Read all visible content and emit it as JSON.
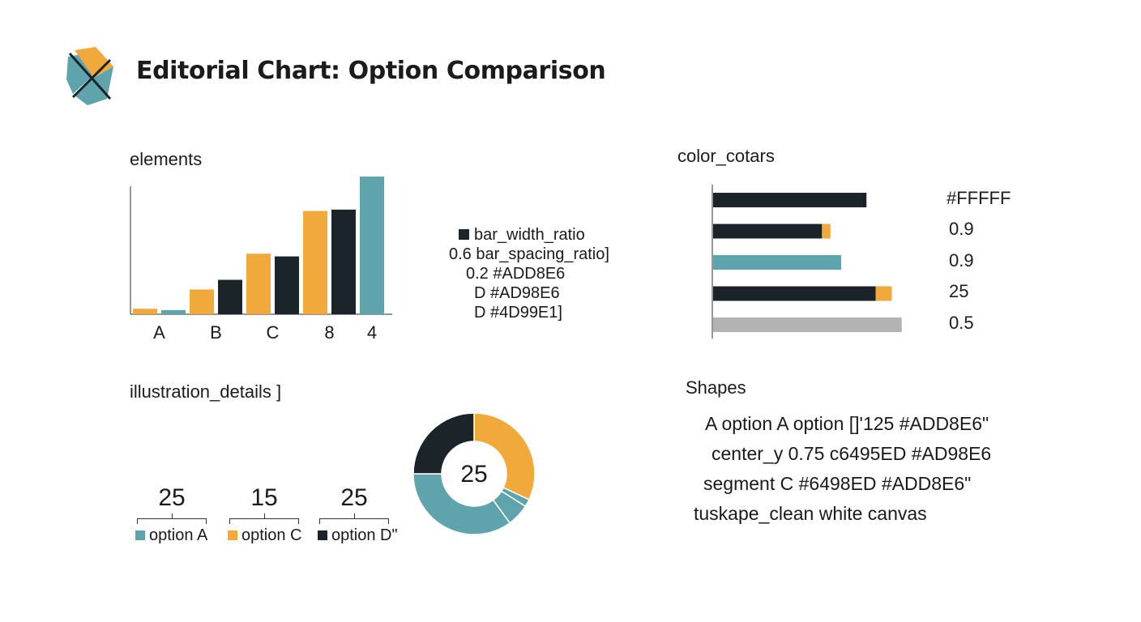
{
  "title": "Editorial Chart: Option Comparison",
  "colors": {
    "teal": "#5fa3ad",
    "orange": "#f2a93b",
    "dark": "#1b2428",
    "gray": "#b3b3b3"
  },
  "sections": {
    "elements": "elements",
    "color": "color_cotars",
    "illustration": "illustration_details ]",
    "shapes": "Shapes"
  },
  "legend_lines": [
    "bar_width_ratio",
    "0.6 bar_spacing_ratio]",
    "0.2 #ADD8E6",
    "D #AD98E6",
    "D #4D99E1]"
  ],
  "chart_data": [
    {
      "type": "bar",
      "title": "elements",
      "categories": [
        "A",
        "B",
        "C",
        "8",
        "4"
      ],
      "series": [
        {
          "color": "#f2a93b",
          "values": [
            4,
            18,
            44,
            75,
            null
          ]
        },
        {
          "color": "#5fa3ad",
          "values": [
            3,
            null,
            null,
            null,
            100
          ]
        },
        {
          "color": "#1b2428",
          "values": [
            null,
            25,
            42,
            76,
            null
          ]
        }
      ],
      "bars": [
        {
          "category": "A",
          "color": "orange",
          "value": 4
        },
        {
          "category": "A",
          "color": "teal",
          "value": 3
        },
        {
          "category": "B",
          "color": "orange",
          "value": 18
        },
        {
          "category": "B",
          "color": "dark",
          "value": 25
        },
        {
          "category": "C",
          "color": "orange",
          "value": 44
        },
        {
          "category": "C",
          "color": "dark",
          "value": 42
        },
        {
          "category": "8",
          "color": "orange",
          "value": 75
        },
        {
          "category": "8",
          "color": "dark",
          "value": 76
        },
        {
          "category": "4",
          "color": "teal",
          "value": 100
        }
      ],
      "ylim": [
        0,
        100
      ]
    },
    {
      "type": "bar",
      "orientation": "horizontal",
      "title": "color_cotars",
      "labels": [
        "#FFFFF",
        "0.9",
        "0.9",
        "25",
        "0.5"
      ],
      "bars": [
        {
          "segments": [
            {
              "color": "dark",
              "value": 200
            }
          ]
        },
        {
          "segments": [
            {
              "color": "dark",
              "value": 142
            },
            {
              "color": "orange",
              "value": 11
            }
          ]
        },
        {
          "segments": [
            {
              "color": "teal",
              "value": 167
            }
          ]
        },
        {
          "segments": [
            {
              "color": "dark",
              "value": 212
            },
            {
              "color": "orange",
              "value": 21
            }
          ]
        },
        {
          "segments": [
            {
              "color": "gray",
              "value": 246
            }
          ]
        }
      ],
      "xlim": [
        0,
        260
      ]
    },
    {
      "type": "pie",
      "title": "illustration_details ]",
      "center_label": "25",
      "slices": [
        {
          "color": "orange",
          "value": 32
        },
        {
          "color": "teal",
          "value": 2
        },
        {
          "color": "teal",
          "value": 6
        },
        {
          "color": "teal",
          "value": 35
        },
        {
          "color": "dark",
          "value": 25
        }
      ]
    }
  ],
  "stats": [
    {
      "value": "25",
      "label": "option A",
      "color": "teal"
    },
    {
      "value": "15",
      "label": "option C",
      "color": "orange"
    },
    {
      "value": "25",
      "label": "option D\"",
      "color": "dark"
    }
  ],
  "shapes_lines": [
    "A option A option []'125 #ADD8E6\"",
    "center_y 0.75 c6495ED #AD98E6",
    "segment C #6498ED #ADD8E6\"",
    "tuskape_clean white canvas"
  ]
}
